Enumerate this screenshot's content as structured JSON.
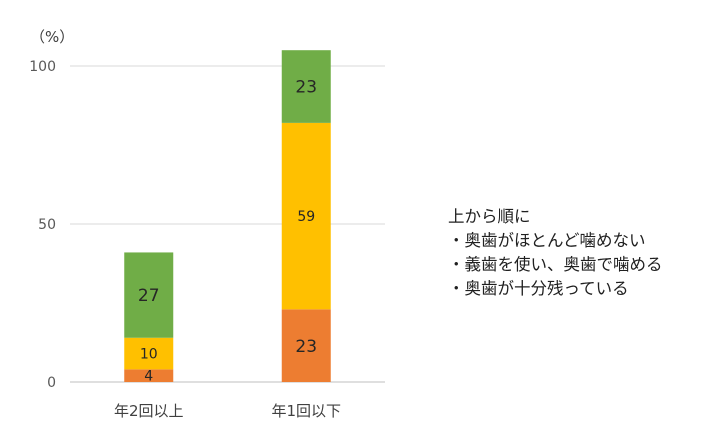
{
  "chart_data": {
    "type": "bar",
    "stacked": true,
    "y_unit_label": "（%）",
    "categories": [
      "年2回以上",
      "年1回以下"
    ],
    "yticks": [
      0,
      50,
      100
    ],
    "ylim": [
      0,
      100
    ],
    "grid": true,
    "series": [
      {
        "values": [
          4,
          23
        ],
        "labels": [
          "4",
          "23"
        ],
        "color": "#ED7D31"
      },
      {
        "values": [
          10,
          59
        ],
        "labels": [
          "10",
          "59"
        ],
        "color": "#FFC000"
      },
      {
        "values": [
          27,
          23
        ],
        "labels": [
          "27",
          "23"
        ],
        "color": "#70AD47"
      }
    ]
  },
  "legend": {
    "title": "上から順に",
    "items": [
      "・奥歯がほとんど噛めない",
      "・義歯を使い、奥歯で噛める",
      "・奥歯が十分残っている"
    ]
  }
}
